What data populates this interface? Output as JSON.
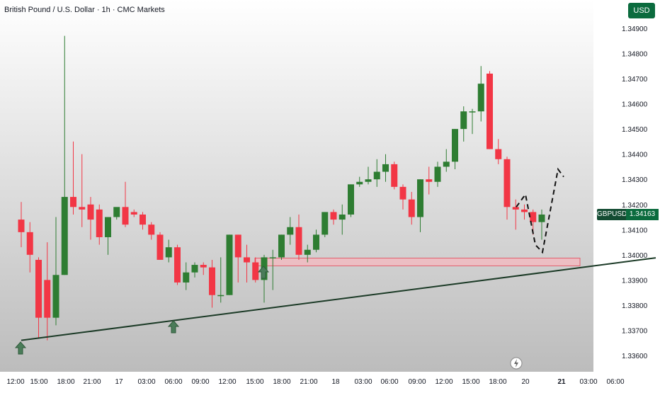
{
  "title": "British Pound / U.S. Dollar · 1h · CMC Markets",
  "currency_button": "USD",
  "symbol_tag": "GBPUSD",
  "price_tag": "1.34163",
  "colors": {
    "up": "#2e7d32",
    "down": "#f23645",
    "zone": "#f5b8bf",
    "wick": "#2e7d32"
  },
  "chart_data": {
    "type": "candlestick",
    "title": "British Pound / U.S. Dollar · 1h · CMC Markets",
    "ylim": [
      1.3355,
      1.3495
    ],
    "y_ticks": [
      "1.34900",
      "1.34800",
      "1.34700",
      "1.34600",
      "1.34500",
      "1.34400",
      "1.34300",
      "1.34200",
      "1.34100",
      "1.34000",
      "1.33900",
      "1.33800",
      "1.33700",
      "1.33600"
    ],
    "x_ticks": [
      "12:00",
      "15:00",
      "18:00",
      "21:00",
      "17",
      "03:00",
      "06:00",
      "09:00",
      "12:00",
      "15:00",
      "18:00",
      "21:00",
      "18",
      "03:00",
      "06:00",
      "09:00",
      "12:00",
      "15:00",
      "18:00",
      "20",
      "21",
      "03:00",
      "06:00"
    ],
    "bold_x_ticks": [
      "21"
    ],
    "candles": [
      {
        "o": 1.3414,
        "h": 1.3421,
        "c": 1.3409,
        "l": 1.3403
      },
      {
        "o": 1.3409,
        "h": 1.3413,
        "c": 1.34,
        "l": 1.3393
      },
      {
        "o": 1.3398,
        "h": 1.3399,
        "c": 1.3375,
        "l": 1.3367
      },
      {
        "o": 1.339,
        "h": 1.3405,
        "c": 1.3375,
        "l": 1.3366
      },
      {
        "o": 1.3375,
        "h": 1.3415,
        "c": 1.3392,
        "l": 1.3372
      },
      {
        "o": 1.3392,
        "h": 1.3487,
        "c": 1.3423,
        "l": 1.3392
      },
      {
        "o": 1.3423,
        "h": 1.3445,
        "c": 1.3419,
        "l": 1.3416
      },
      {
        "o": 1.3419,
        "h": 1.344,
        "c": 1.3418,
        "l": 1.3411
      },
      {
        "o": 1.342,
        "h": 1.3423,
        "c": 1.3414,
        "l": 1.3406
      },
      {
        "o": 1.3418,
        "h": 1.342,
        "c": 1.3407,
        "l": 1.3404
      },
      {
        "o": 1.3407,
        "h": 1.3415,
        "c": 1.3415,
        "l": 1.34
      },
      {
        "o": 1.3415,
        "h": 1.3418,
        "c": 1.3419,
        "l": 1.3414
      },
      {
        "o": 1.3419,
        "h": 1.3429,
        "c": 1.3412,
        "l": 1.3411
      },
      {
        "o": 1.3417,
        "h": 1.3418,
        "c": 1.3416,
        "l": 1.3415
      },
      {
        "o": 1.3416,
        "h": 1.3417,
        "c": 1.3412,
        "l": 1.341
      },
      {
        "o": 1.3412,
        "h": 1.3413,
        "c": 1.3408,
        "l": 1.3406
      },
      {
        "o": 1.3408,
        "h": 1.3409,
        "c": 1.3398,
        "l": 1.3398
      },
      {
        "o": 1.3399,
        "h": 1.3406,
        "c": 1.3403,
        "l": 1.3397
      },
      {
        "o": 1.3403,
        "h": 1.3404,
        "c": 1.3389,
        "l": 1.3388
      },
      {
        "o": 1.3389,
        "h": 1.3397,
        "c": 1.3393,
        "l": 1.3386
      },
      {
        "o": 1.3393,
        "h": 1.3397,
        "c": 1.3396,
        "l": 1.3391
      },
      {
        "o": 1.3396,
        "h": 1.3397,
        "c": 1.3395,
        "l": 1.3392
      },
      {
        "o": 1.3395,
        "h": 1.3398,
        "c": 1.3384,
        "l": 1.3379
      },
      {
        "o": 1.3384,
        "h": 1.3399,
        "c": 1.3384,
        "l": 1.3381
      },
      {
        "o": 1.3384,
        "h": 1.3408,
        "c": 1.3408,
        "l": 1.3384
      },
      {
        "o": 1.3408,
        "h": 1.3408,
        "c": 1.3399,
        "l": 1.3389
      },
      {
        "o": 1.3399,
        "h": 1.3404,
        "c": 1.3397,
        "l": 1.3389
      },
      {
        "o": 1.3397,
        "h": 1.3399,
        "c": 1.339,
        "l": 1.3389
      },
      {
        "o": 1.339,
        "h": 1.34,
        "c": 1.3399,
        "l": 1.3381
      },
      {
        "o": 1.3399,
        "h": 1.3402,
        "c": 1.3399,
        "l": 1.3386
      },
      {
        "o": 1.3399,
        "h": 1.3408,
        "c": 1.3408,
        "l": 1.3398
      },
      {
        "o": 1.3408,
        "h": 1.3415,
        "c": 1.3411,
        "l": 1.3404
      },
      {
        "o": 1.3411,
        "h": 1.3416,
        "c": 1.34,
        "l": 1.3398
      },
      {
        "o": 1.34,
        "h": 1.3404,
        "c": 1.3402,
        "l": 1.3397
      },
      {
        "o": 1.3402,
        "h": 1.341,
        "c": 1.3408,
        "l": 1.3401
      },
      {
        "o": 1.3408,
        "h": 1.3417,
        "c": 1.3417,
        "l": 1.3407
      },
      {
        "o": 1.3417,
        "h": 1.3418,
        "c": 1.3414,
        "l": 1.3412
      },
      {
        "o": 1.3414,
        "h": 1.342,
        "c": 1.3416,
        "l": 1.3408
      },
      {
        "o": 1.3416,
        "h": 1.3428,
        "c": 1.3428,
        "l": 1.3415
      },
      {
        "o": 1.3428,
        "h": 1.3431,
        "c": 1.3429,
        "l": 1.3427
      },
      {
        "o": 1.3429,
        "h": 1.3435,
        "c": 1.343,
        "l": 1.3428
      },
      {
        "o": 1.343,
        "h": 1.3438,
        "c": 1.3433,
        "l": 1.3427
      },
      {
        "o": 1.3433,
        "h": 1.344,
        "c": 1.3436,
        "l": 1.3429
      },
      {
        "o": 1.3436,
        "h": 1.3437,
        "c": 1.3427,
        "l": 1.3426
      },
      {
        "o": 1.3427,
        "h": 1.3428,
        "c": 1.3422,
        "l": 1.3418
      },
      {
        "o": 1.3422,
        "h": 1.3425,
        "c": 1.3415,
        "l": 1.3412
      },
      {
        "o": 1.3415,
        "h": 1.343,
        "c": 1.343,
        "l": 1.3409
      },
      {
        "o": 1.343,
        "h": 1.3435,
        "c": 1.3429,
        "l": 1.3424
      },
      {
        "o": 1.3429,
        "h": 1.3437,
        "c": 1.3435,
        "l": 1.3427
      },
      {
        "o": 1.3435,
        "h": 1.3442,
        "c": 1.3437,
        "l": 1.3433
      },
      {
        "o": 1.3437,
        "h": 1.345,
        "c": 1.345,
        "l": 1.3434
      },
      {
        "o": 1.345,
        "h": 1.3459,
        "c": 1.3457,
        "l": 1.3445
      },
      {
        "o": 1.3457,
        "h": 1.3458,
        "c": 1.3457,
        "l": 1.3448
      },
      {
        "o": 1.3457,
        "h": 1.3475,
        "c": 1.3468,
        "l": 1.3453
      },
      {
        "o": 1.3472,
        "h": 1.3473,
        "c": 1.3442,
        "l": 1.3442
      },
      {
        "o": 1.3442,
        "h": 1.3446,
        "c": 1.3438,
        "l": 1.3436
      },
      {
        "o": 1.3438,
        "h": 1.3439,
        "c": 1.3419,
        "l": 1.3414
      },
      {
        "o": 1.3419,
        "h": 1.3422,
        "c": 1.3418,
        "l": 1.341
      },
      {
        "o": 1.3418,
        "h": 1.342,
        "c": 1.3417,
        "l": 1.3414
      },
      {
        "o": 1.3417,
        "h": 1.3418,
        "c": 1.3413,
        "l": 1.3408
      },
      {
        "o": 1.3413,
        "h": 1.3418,
        "c": 1.3416,
        "l": 1.3406
      }
    ],
    "support_zone": [
      1.3396,
      1.33987
    ],
    "trendline": [
      [
        0,
        1.3366
      ],
      [
        72,
        1.33988
      ]
    ],
    "projection": [
      [
        61,
        1.3419
      ],
      [
        62,
        1.3424
      ],
      [
        63,
        1.3404
      ],
      [
        65,
        1.3401
      ],
      [
        68,
        1.3434
      ],
      [
        69,
        1.3431
      ]
    ],
    "arrows": [
      0,
      20,
      31
    ]
  }
}
